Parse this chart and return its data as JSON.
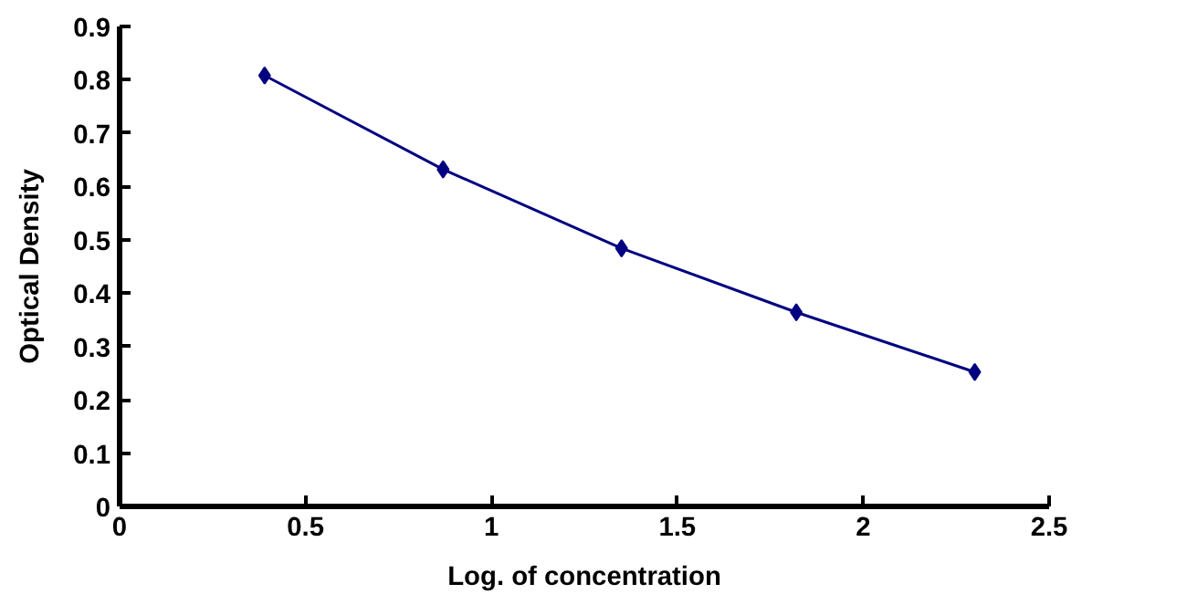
{
  "chart_data": {
    "type": "line",
    "xlabel": "Log. of concentration",
    "ylabel": "Optical Density",
    "x": [
      0.39,
      0.87,
      1.35,
      1.82,
      2.3
    ],
    "series": [
      {
        "color": "#000080",
        "values": [
          0.808,
          0.632,
          0.484,
          0.364,
          0.252
        ]
      }
    ],
    "xlim": [
      0,
      2.5
    ],
    "xticks": [
      0,
      0.5,
      1,
      1.5,
      2,
      2.5
    ],
    "ylim": [
      0,
      0.9
    ],
    "yticks": [
      0,
      0.1,
      0.2,
      0.3,
      0.4,
      0.5,
      0.6,
      0.7,
      0.8,
      0.9
    ],
    "grid": false,
    "marker": "diamond",
    "line_style": "solid"
  }
}
